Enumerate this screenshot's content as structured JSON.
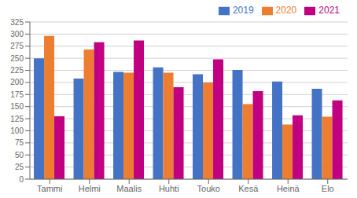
{
  "chart_data": {
    "type": "bar",
    "categories": [
      "Tammi",
      "Helmi",
      "Maalis",
      "Huhti",
      "Touko",
      "Kesä",
      "Heinä",
      "Elo"
    ],
    "series": [
      {
        "name": "2019",
        "color": "#4472c4",
        "values": [
          250,
          208,
          222,
          231,
          217,
          226,
          202,
          187
        ]
      },
      {
        "name": "2020",
        "color": "#ed7d31",
        "values": [
          296,
          268,
          220,
          220,
          200,
          155,
          113,
          129
        ]
      },
      {
        "name": "2021",
        "color": "#c00080",
        "values": [
          130,
          283,
          287,
          190,
          248,
          182,
          132,
          163
        ]
      }
    ],
    "ylim": [
      0,
      325
    ],
    "yticks": [
      0,
      25,
      50,
      75,
      100,
      125,
      150,
      175,
      200,
      225,
      250,
      275,
      300,
      325
    ],
    "grid": true,
    "legend": "upper right"
  }
}
